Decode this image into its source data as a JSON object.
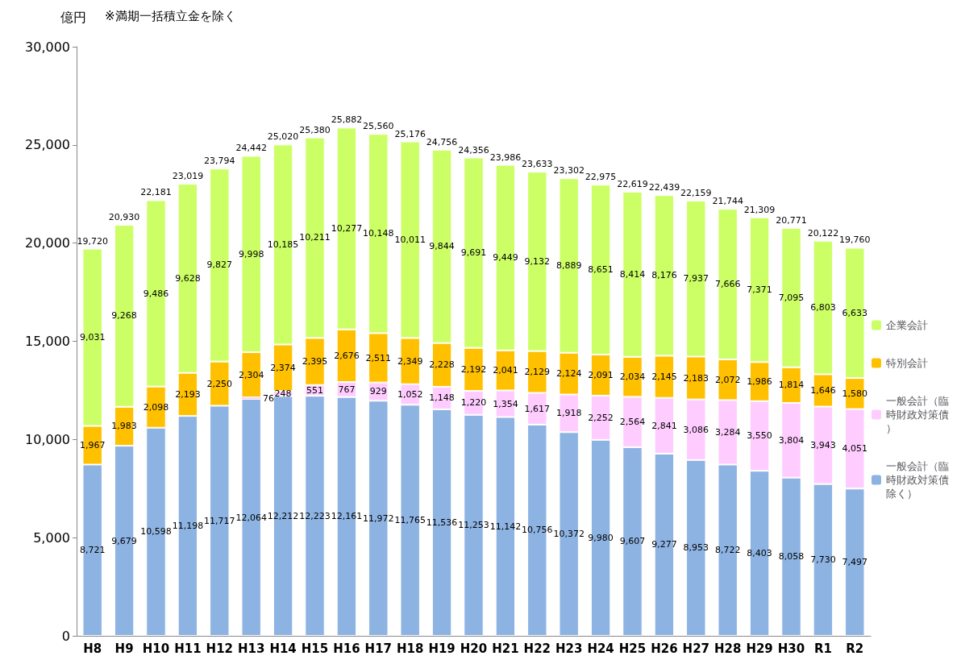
{
  "chart_data": {
    "type": "bar",
    "stacked": true,
    "ylabel": "億円",
    "annotations": [
      "※満期一括積立金を除く"
    ],
    "categories": [
      "H8",
      "H9",
      "H10",
      "H11",
      "H12",
      "H13",
      "H14",
      "H15",
      "H16",
      "H17",
      "H18",
      "H19",
      "H20",
      "H21",
      "H22",
      "H23",
      "H24",
      "H25",
      "H26",
      "H27",
      "H28",
      "H29",
      "H30",
      "R1",
      "R2"
    ],
    "series": [
      {
        "name": "一般会計（臨時財政対策債除く）",
        "color": "#8db3e2",
        "values": [
          8721,
          9679,
          10598,
          11198,
          11717,
          12064,
          12212,
          12223,
          12161,
          11972,
          11765,
          11536,
          11253,
          11142,
          10756,
          10372,
          9980,
          9607,
          9277,
          8953,
          8722,
          8403,
          8058,
          7730,
          7497
        ],
        "value_labels": [
          "8,721",
          "9,679",
          "10,598",
          "11,198",
          "11,717",
          "12,064",
          "12,212",
          "12,223",
          "12,161",
          "11,972",
          "11,765",
          "11,536",
          "11,253",
          "11,142",
          "10,756",
          "10,372",
          "9,980",
          "9,607",
          "9,277",
          "8,953",
          "8,722",
          "8,403",
          "8,058",
          "7,730",
          "7,497"
        ]
      },
      {
        "name": "一般会計（臨時財政対策債）",
        "color": "#ffccff",
        "values": [
          null,
          null,
          null,
          null,
          null,
          76,
          248,
          551,
          767,
          929,
          1052,
          1148,
          1220,
          1354,
          1617,
          1918,
          2252,
          2564,
          2841,
          3086,
          3284,
          3550,
          3804,
          3943,
          4051
        ],
        "value_labels": [
          null,
          null,
          null,
          null,
          null,
          "76",
          "248",
          "551",
          "767",
          "929",
          "1,052",
          "1,148",
          "1,220",
          "1,354",
          "1,617",
          "1,918",
          "2,252",
          "2,564",
          "2,841",
          "3,086",
          "3,284",
          "3,550",
          "3,804",
          "3,943",
          "4,051"
        ]
      },
      {
        "name": "特別会計",
        "color": "#ffc000",
        "values": [
          1967,
          1983,
          2098,
          2193,
          2250,
          2304,
          2374,
          2395,
          2676,
          2511,
          2349,
          2228,
          2192,
          2041,
          2129,
          2124,
          2091,
          2034,
          2145,
          2183,
          2072,
          1986,
          1814,
          1646,
          1580
        ],
        "value_labels": [
          "1,967",
          "1,983",
          "2,098",
          "2,193",
          "2,250",
          "2,304",
          "2,374",
          "2,395",
          "2,676",
          "2,511",
          "2,349",
          "2,228",
          "2,192",
          "2,041",
          "2,129",
          "2,124",
          "2,091",
          "2,034",
          "2,145",
          "2,183",
          "2,072",
          "1,986",
          "1,814",
          "1,646",
          "1,580"
        ]
      },
      {
        "name": "企業会計",
        "color": "#ccff66",
        "values": [
          9031,
          9268,
          9486,
          9628,
          9827,
          9998,
          10185,
          10211,
          10277,
          10148,
          10011,
          9844,
          9691,
          9449,
          9132,
          8889,
          8651,
          8414,
          8176,
          7937,
          7666,
          7371,
          7095,
          6803,
          6633
        ],
        "value_labels": [
          "9,031",
          "9,268",
          "9,486",
          "9,628",
          "9,827",
          "9,998",
          "10,185",
          "10,211",
          "10,277",
          "10,148",
          "10,011",
          "9,844",
          "9,691",
          "9,449",
          "9,132",
          "8,889",
          "8,651",
          "8,414",
          "8,176",
          "7,937",
          "7,666",
          "7,371",
          "7,095",
          "6,803",
          "6,633"
        ]
      }
    ],
    "totals": [
      "19,720",
      "20,930",
      "22,181",
      "23,019",
      "23,794",
      "24,442",
      "25,020",
      "25,380",
      "25,882",
      "25,560",
      "25,176",
      "24,756",
      "24,356",
      "23,986",
      "23,633",
      "23,302",
      "22,975",
      "22,619",
      "22,439",
      "22,159",
      "21,744",
      "21,309",
      "20,771",
      "20,122",
      "19,760"
    ],
    "ylim": [
      0,
      30000
    ],
    "yticks": [
      {
        "value": 0,
        "label": "0"
      },
      {
        "value": 5000,
        "label": "5,000"
      },
      {
        "value": 10000,
        "label": "10,000"
      },
      {
        "value": 15000,
        "label": "15,000"
      },
      {
        "value": 20000,
        "label": "20,000"
      },
      {
        "value": 25000,
        "label": "25,000"
      },
      {
        "value": 30000,
        "label": "30,000"
      }
    ],
    "grid": false,
    "legend": "right"
  }
}
